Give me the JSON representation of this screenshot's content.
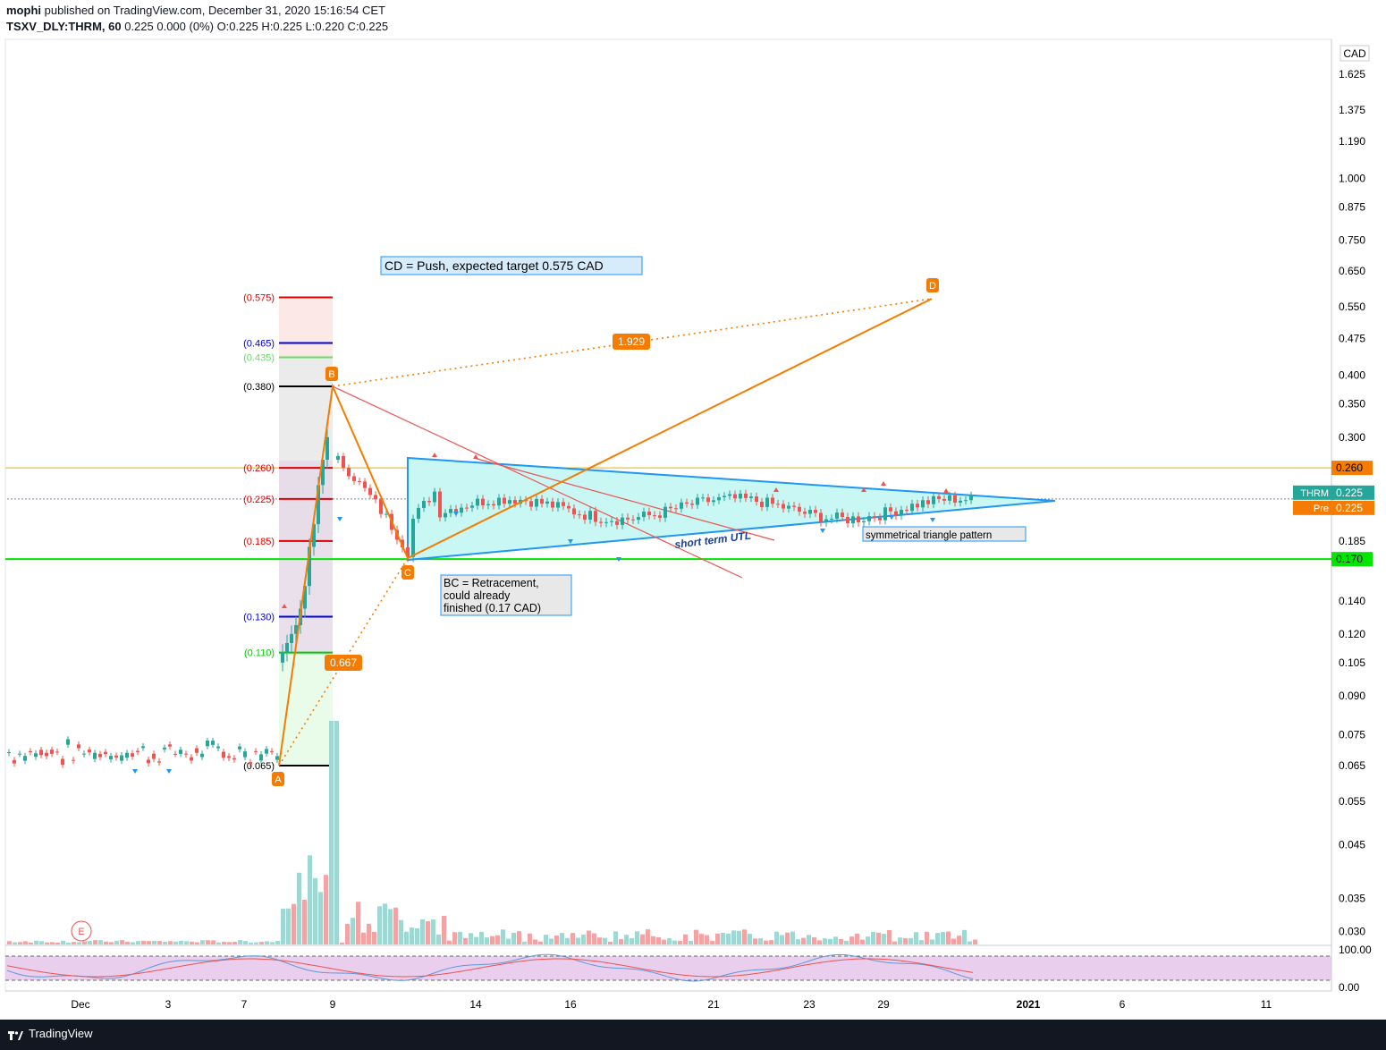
{
  "header": {
    "publisher": "mophi",
    "published_text": "published on TradingView.com, December 31, 2020 15:16:54 CET",
    "symbol_line": "TSXV_DLY:THRM, 60",
    "ohlc": "0.225 0.000 (0%) O:0.225 H:0.225 L:0.220 C:0.225"
  },
  "footer": {
    "brand": "TradingView"
  },
  "colors": {
    "up": "#26a69a",
    "down": "#ef5350",
    "orange": "#f57c00",
    "cyan": "#2196f3",
    "green": "#00e600",
    "gold": "#e5b300",
    "rsi_bg": "#e1bee7"
  },
  "chart_data": {
    "type": "candlestick",
    "scale": "log",
    "currency": "CAD",
    "y_ticks": [
      "1.625",
      "1.375",
      "1.190",
      "1.000",
      "0.875",
      "0.750",
      "0.650",
      "0.550",
      "0.475",
      "0.400",
      "0.350",
      "0.300",
      "0.185",
      "0.140",
      "0.120",
      "0.105",
      "0.090",
      "0.075",
      "0.065",
      "0.055",
      "0.045",
      "0.035",
      "0.030"
    ],
    "x_ticks": [
      "Dec",
      "3",
      "7",
      "9",
      "14",
      "16",
      "21",
      "23",
      "29",
      "2021",
      "6",
      "11"
    ],
    "price_labels": [
      {
        "label": "0.260",
        "value": 0.26,
        "color": "#f57c00"
      },
      {
        "label": "THRM",
        "value": 0.225,
        "color": "#26a69a",
        "text": "0.225"
      },
      {
        "label": "Pre",
        "value": 0.225,
        "color": "#f57c00",
        "text": "0.225"
      },
      {
        "label": "0.170",
        "value": 0.17,
        "color": "#00e600"
      }
    ],
    "horizontal_lines": [
      {
        "value": 0.26,
        "color": "#e5b300"
      },
      {
        "value": 0.17,
        "color": "#00e600"
      }
    ],
    "fib_levels": [
      {
        "label": "(0.575)",
        "value": 0.575,
        "color": "#e00000"
      },
      {
        "label": "(0.465)",
        "value": 0.465,
        "color": "#0000e0"
      },
      {
        "label": "(0.435)",
        "value": 0.435,
        "color": "#66dd66"
      },
      {
        "label": "(0.380)",
        "value": 0.38,
        "color": "#000000"
      },
      {
        "label": "(0.260)",
        "value": 0.26,
        "color": "#e00000"
      },
      {
        "label": "(0.225)",
        "value": 0.225,
        "color": "#e00000"
      },
      {
        "label": "(0.185)",
        "value": 0.185,
        "color": "#e00000"
      },
      {
        "label": "(0.130)",
        "value": 0.13,
        "color": "#0000e0"
      },
      {
        "label": "(0.110)",
        "value": 0.11,
        "color": "#00cc00"
      },
      {
        "label": "(0.065)",
        "value": 0.065,
        "color": "#000000"
      }
    ],
    "abcd_points": [
      {
        "label": "A",
        "value": 0.065
      },
      {
        "label": "B",
        "value": 0.38
      },
      {
        "label": "C",
        "value": 0.17
      },
      {
        "label": "D",
        "value": 0.575
      }
    ],
    "ratios": [
      "0.667",
      "1.929"
    ],
    "annotations": {
      "cd": "CD = Push, expected target 0.575 CAD",
      "bc": [
        "BC = Retracement,",
        "could already",
        "finished (0.17 CAD)"
      ],
      "triangle": "symmetrical triangle pattern",
      "utl": "short term UTL",
      "earnings": "E"
    },
    "rsi_ticks": [
      "100.00",
      "0.00"
    ]
  }
}
